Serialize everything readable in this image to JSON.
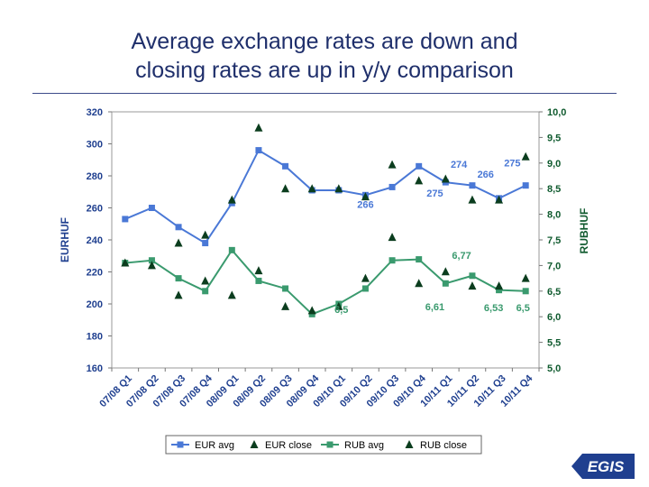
{
  "title_lines": [
    "Average exchange rates are down and",
    "closing rates are up in y/y comparison"
  ],
  "logo": {
    "text": "EGIS",
    "color": "#1f3f8f"
  },
  "colors": {
    "eur": "#4a78d6",
    "rub": "#3a9a6e",
    "close": "#0b3d1e",
    "left_tick": "#1f3f8f",
    "right_tick": "#0f5a2e",
    "label_blue": "#4a78d6",
    "label_green": "#3a9a6e"
  },
  "chart_data": {
    "type": "line",
    "categories": [
      "07/08 Q1",
      "07/08 Q2",
      "07/08 Q3",
      "07/08 Q4",
      "08/09 Q1",
      "08/09 Q2",
      "08/09 Q3",
      "08/09 Q4",
      "09/10 Q1",
      "09/10 Q2",
      "09/10 Q3",
      "09/10 Q4",
      "10/11 Q1",
      "10/11 Q2",
      "10/11 Q3",
      "10/11 Q4"
    ],
    "ylabel_left": "EURHUF",
    "ylabel_right": "RUBHUF",
    "ylim_left": [
      160,
      320
    ],
    "ylim_right": [
      5.0,
      10.0
    ],
    "yticks_left": [
      "160",
      "180",
      "200",
      "220",
      "240",
      "260",
      "280",
      "300",
      "320"
    ],
    "yticks_right": [
      "5,0",
      "5,5",
      "6,0",
      "6,5",
      "7,0",
      "7,5",
      "8,0",
      "8,5",
      "9,0",
      "9,5",
      "10,0"
    ],
    "series": [
      {
        "name": "EUR avg",
        "axis": "left",
        "style": "line-square",
        "values": [
          253,
          260,
          248,
          238,
          263,
          296,
          286,
          271,
          271,
          268,
          273,
          286,
          276,
          274,
          266,
          274
        ]
      },
      {
        "name": "EUR close",
        "axis": "left",
        "style": "triangle",
        "values": [
          null,
          null,
          238,
          243,
          265,
          310,
          272,
          272,
          272,
          267,
          287,
          277,
          278,
          265,
          265,
          292
        ]
      },
      {
        "name": "RUB avg",
        "axis": "right",
        "style": "line-square",
        "values": [
          7.05,
          7.1,
          6.75,
          6.5,
          7.3,
          6.7,
          6.55,
          6.05,
          6.25,
          6.55,
          7.1,
          7.12,
          6.65,
          6.8,
          6.52,
          6.5
        ]
      },
      {
        "name": "RUB close",
        "axis": "right",
        "style": "triangle",
        "values": [
          7.05,
          7.0,
          6.42,
          6.7,
          6.42,
          6.9,
          6.2,
          6.12,
          6.2,
          6.75,
          7.55,
          6.65,
          6.88,
          6.6,
          6.6,
          6.75
        ]
      }
    ],
    "annotations": [
      {
        "text": "266",
        "color": "blue",
        "x_index": 9,
        "y_left": 260
      },
      {
        "text": "274",
        "color": "blue",
        "x_index": 12.5,
        "y_left": 285
      },
      {
        "text": "266",
        "color": "blue",
        "x_index": 13.5,
        "y_left": 279
      },
      {
        "text": "275",
        "color": "blue",
        "x_index": 14.5,
        "y_left": 286
      },
      {
        "text": "275",
        "color": "blue",
        "x_index": 11.6,
        "y_left": 267
      },
      {
        "text": "6,77",
        "color": "green",
        "x_index": 12.6,
        "y_right": 7.13
      },
      {
        "text": "6,5",
        "color": "green",
        "x_index": 8.1,
        "y_right": 6.07
      },
      {
        "text": "6,61",
        "color": "green",
        "x_index": 11.6,
        "y_right": 6.13
      },
      {
        "text": "6,53",
        "color": "green",
        "x_index": 13.8,
        "y_right": 6.11
      },
      {
        "text": "6,5",
        "color": "green",
        "x_index": 14.9,
        "y_right": 6.11
      }
    ],
    "legend": {
      "position": "bottom",
      "items": [
        "EUR avg",
        "EUR close",
        "RUB avg",
        "RUB close"
      ]
    }
  }
}
